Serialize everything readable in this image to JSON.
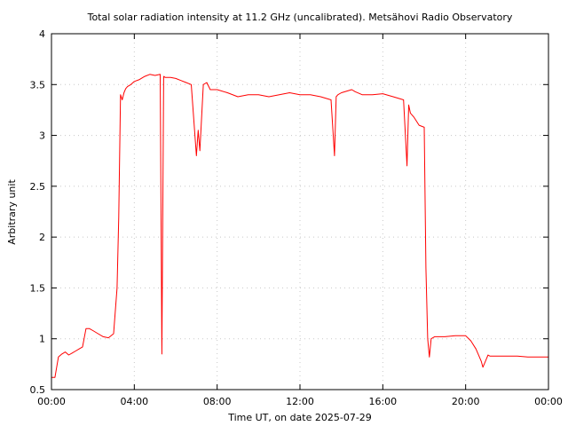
{
  "chart_data": {
    "type": "line",
    "title": "Total solar radiation intensity at 11.2 GHz (uncalibrated). Metsähovi Radio Observatory",
    "xlabel": "Time UT, on date 2025-07-29",
    "ylabel": "Arbitrary unit",
    "xlim": [
      "00:00",
      "24:00"
    ],
    "ylim": [
      0.5,
      4
    ],
    "x_ticks": [
      "00:00",
      "04:00",
      "08:00",
      "12:00",
      "16:00",
      "20:00",
      "00:00"
    ],
    "y_ticks": [
      "0.5",
      "1",
      "1.5",
      "2",
      "2.5",
      "3",
      "3.5",
      "4"
    ],
    "grid": true,
    "series_color": "#ff0000",
    "series": [
      {
        "x": [
          "00:00",
          "00:10",
          "00:20",
          "00:30",
          "00:40",
          "00:50",
          "01:00",
          "01:10",
          "01:20",
          "01:30",
          "01:40",
          "01:50",
          "02:00",
          "02:15",
          "02:30",
          "02:45",
          "03:00",
          "03:10",
          "03:15",
          "03:20",
          "03:25",
          "03:30",
          "03:35",
          "03:40",
          "03:50",
          "04:00",
          "04:15",
          "04:30",
          "04:45",
          "05:00",
          "05:15",
          "05:20",
          "05:25",
          "05:30",
          "05:45",
          "06:00",
          "06:15",
          "06:30",
          "06:45",
          "07:00",
          "07:05",
          "07:10",
          "07:20",
          "07:30",
          "07:40",
          "08:00",
          "08:30",
          "09:00",
          "09:30",
          "10:00",
          "10:30",
          "11:00",
          "11:30",
          "12:00",
          "12:30",
          "13:00",
          "13:30",
          "13:40",
          "13:45",
          "13:50",
          "14:00",
          "14:30",
          "14:40",
          "15:00",
          "15:30",
          "16:00",
          "16:30",
          "17:00",
          "17:10",
          "17:15",
          "17:20",
          "17:30",
          "17:45",
          "18:00",
          "18:05",
          "18:10",
          "18:15",
          "18:20",
          "18:30",
          "19:00",
          "19:30",
          "20:00",
          "20:15",
          "20:30",
          "20:45",
          "20:50",
          "21:00",
          "21:05",
          "21:10",
          "21:15",
          "21:30",
          "22:00",
          "22:30",
          "23:00",
          "23:30",
          "24:00"
        ],
        "y": [
          0.62,
          0.62,
          0.82,
          0.85,
          0.87,
          0.84,
          0.86,
          0.88,
          0.9,
          0.92,
          1.1,
          1.1,
          1.08,
          1.05,
          1.02,
          1.01,
          1.05,
          1.5,
          2.2,
          3.4,
          3.35,
          3.42,
          3.46,
          3.48,
          3.5,
          3.53,
          3.55,
          3.58,
          3.6,
          3.59,
          3.6,
          0.85,
          3.58,
          3.57,
          3.57,
          3.56,
          3.54,
          3.52,
          3.5,
          2.8,
          3.05,
          2.85,
          3.5,
          3.52,
          3.45,
          3.45,
          3.42,
          3.38,
          3.4,
          3.4,
          3.38,
          3.4,
          3.42,
          3.4,
          3.4,
          3.38,
          3.35,
          2.8,
          3.38,
          3.4,
          3.42,
          3.45,
          3.43,
          3.4,
          3.4,
          3.41,
          3.38,
          3.35,
          2.7,
          3.3,
          3.22,
          3.18,
          3.1,
          3.08,
          1.7,
          1.0,
          0.82,
          1.0,
          1.02,
          1.02,
          1.03,
          1.03,
          0.98,
          0.9,
          0.78,
          0.72,
          0.8,
          0.84,
          0.83,
          0.83,
          0.83,
          0.83,
          0.83,
          0.82,
          0.82,
          0.82
        ]
      }
    ]
  }
}
